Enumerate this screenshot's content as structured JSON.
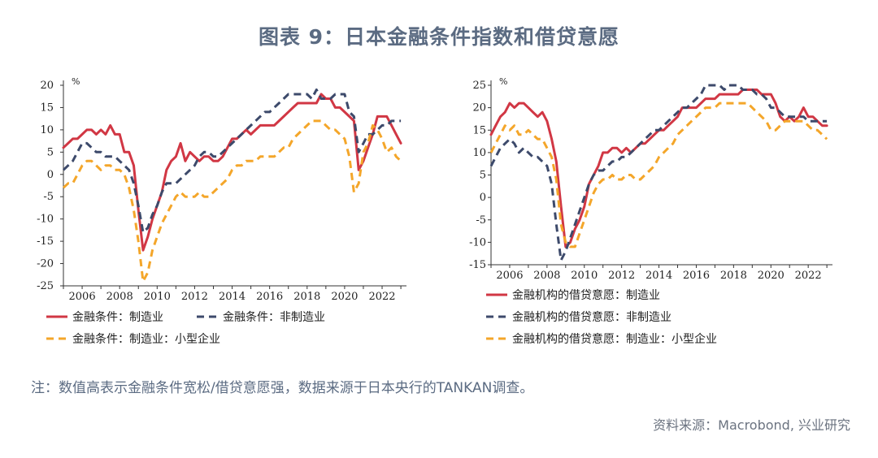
{
  "title": "图表 9：日本金融条件指数和借贷意愿",
  "note": "注：数值高表示金融条件宽松/借贷意愿强，数据来源于日本央行的TANKAN调查。",
  "source": "资料来源：Macrobond, 兴业研究",
  "colors": {
    "red": "#d13744",
    "navy": "#3d4a6b",
    "orange": "#f4a62a"
  },
  "chart_data": [
    {
      "type": "line",
      "unit": "%",
      "xlim": [
        2005,
        2023.3
      ],
      "ylim": [
        -25,
        20
      ],
      "xticks": [
        "2006",
        "2008",
        "2010",
        "2012",
        "2014",
        "2016",
        "2018",
        "2020",
        "2022"
      ],
      "yticks": [
        "20",
        "15",
        "10",
        "5",
        "0",
        "-5",
        "-10",
        "-15",
        "-20",
        "-25"
      ],
      "legend": "bottom",
      "series": [
        {
          "name": "金融条件：制造业",
          "color": "#d13744",
          "dash": "solid",
          "x": [
            2005,
            2005.25,
            2005.5,
            2005.75,
            2006,
            2006.25,
            2006.5,
            2006.75,
            2007,
            2007.25,
            2007.5,
            2007.75,
            2008,
            2008.25,
            2008.5,
            2008.75,
            2009,
            2009.25,
            2009.5,
            2009.75,
            2010,
            2010.25,
            2010.5,
            2010.75,
            2011,
            2011.25,
            2011.5,
            2011.75,
            2012,
            2012.25,
            2012.5,
            2012.75,
            2013,
            2013.25,
            2013.5,
            2013.75,
            2014,
            2014.25,
            2014.5,
            2014.75,
            2015,
            2015.25,
            2015.5,
            2015.75,
            2016,
            2016.25,
            2016.5,
            2016.75,
            2017,
            2017.25,
            2017.5,
            2017.75,
            2018,
            2018.25,
            2018.5,
            2018.75,
            2019,
            2019.25,
            2019.5,
            2019.75,
            2020,
            2020.25,
            2020.5,
            2020.75,
            2021,
            2021.25,
            2021.5,
            2021.75,
            2022,
            2022.25,
            2022.5,
            2022.75,
            2023
          ],
          "y": [
            6,
            7,
            8,
            8,
            9,
            10,
            10,
            9,
            10,
            9,
            11,
            9,
            9,
            5,
            5,
            2,
            -8,
            -17,
            -14,
            -10,
            -7,
            -4,
            1,
            3,
            4,
            7,
            3,
            5,
            4,
            3,
            4,
            4,
            3,
            3,
            4,
            6,
            8,
            8,
            9,
            10,
            9,
            10,
            11,
            11,
            11,
            11,
            12,
            13,
            14,
            15,
            16,
            16,
            16,
            16,
            16,
            18,
            17,
            17,
            15,
            15,
            14,
            13,
            12,
            1,
            3,
            6,
            9,
            13,
            13,
            13,
            11,
            9,
            7
          ]
        },
        {
          "name": "金融条件：非制造业",
          "color": "#3d4a6b",
          "dash": "dashed",
          "x": [
            2005,
            2005.25,
            2005.5,
            2005.75,
            2006,
            2006.25,
            2006.5,
            2006.75,
            2007,
            2007.25,
            2007.5,
            2007.75,
            2008,
            2008.25,
            2008.5,
            2008.75,
            2009,
            2009.25,
            2009.5,
            2009.75,
            2010,
            2010.25,
            2010.5,
            2010.75,
            2011,
            2011.25,
            2011.5,
            2011.75,
            2012,
            2012.25,
            2012.5,
            2012.75,
            2013,
            2013.25,
            2013.5,
            2013.75,
            2014,
            2014.25,
            2014.5,
            2014.75,
            2015,
            2015.25,
            2015.5,
            2015.75,
            2016,
            2016.25,
            2016.5,
            2016.75,
            2017,
            2017.25,
            2017.5,
            2017.75,
            2018,
            2018.25,
            2018.5,
            2018.75,
            2019,
            2019.25,
            2019.5,
            2019.75,
            2020,
            2020.25,
            2020.5,
            2020.75,
            2021,
            2021.25,
            2021.5,
            2021.75,
            2022,
            2022.25,
            2022.5,
            2022.75,
            2023
          ],
          "y": [
            1,
            2,
            3,
            5,
            7,
            7,
            6,
            5,
            5,
            4,
            4,
            4,
            3,
            2,
            1,
            -2,
            -7,
            -13,
            -12,
            -9,
            -7,
            -4,
            -2,
            -2,
            -2,
            -1,
            0,
            1,
            2,
            4,
            5,
            5,
            4,
            4,
            5,
            6,
            7,
            8,
            9,
            10,
            11,
            12,
            13,
            14,
            14,
            15,
            16,
            17,
            18,
            18,
            18,
            18,
            18,
            17,
            19,
            17,
            17,
            17,
            18,
            18,
            18,
            14,
            13,
            5,
            7,
            9,
            9,
            10,
            11,
            11,
            12,
            12,
            12
          ]
        },
        {
          "name": "金融条件：制造业：小型企业",
          "color": "#f4a62a",
          "dash": "dashed",
          "x": [
            2005,
            2005.25,
            2005.5,
            2005.75,
            2006,
            2006.25,
            2006.5,
            2006.75,
            2007,
            2007.25,
            2007.5,
            2007.75,
            2008,
            2008.25,
            2008.5,
            2008.75,
            2009,
            2009.25,
            2009.5,
            2009.75,
            2010,
            2010.25,
            2010.5,
            2010.75,
            2011,
            2011.25,
            2011.5,
            2011.75,
            2012,
            2012.25,
            2012.5,
            2012.75,
            2013,
            2013.25,
            2013.5,
            2013.75,
            2014,
            2014.25,
            2014.5,
            2014.75,
            2015,
            2015.25,
            2015.5,
            2015.75,
            2016,
            2016.25,
            2016.5,
            2016.75,
            2017,
            2017.25,
            2017.5,
            2017.75,
            2018,
            2018.25,
            2018.5,
            2018.75,
            2019,
            2019.25,
            2019.5,
            2019.75,
            2020,
            2020.25,
            2020.5,
            2020.75,
            2021,
            2021.25,
            2021.5,
            2021.75,
            2022,
            2022.25,
            2022.5,
            2022.75,
            2023
          ],
          "y": [
            -3,
            -2,
            -2,
            0,
            2,
            3,
            3,
            2,
            1,
            2,
            2,
            1,
            1,
            0,
            -3,
            -8,
            -15,
            -24,
            -22,
            -17,
            -14,
            -11,
            -9,
            -7,
            -5,
            -4,
            -5,
            -5,
            -5,
            -4,
            -5,
            -5,
            -4,
            -3,
            -2,
            -1,
            1,
            2,
            2,
            3,
            3,
            3,
            4,
            4,
            4,
            4,
            5,
            6,
            6,
            8,
            9,
            10,
            11,
            12,
            12,
            12,
            11,
            10,
            10,
            9,
            8,
            4,
            -4,
            -2,
            5,
            7,
            11,
            10,
            8,
            5,
            6,
            4,
            3
          ]
        }
      ]
    },
    {
      "type": "line",
      "xlim": [
        2005,
        2023.3
      ],
      "ylim": [
        -15,
        25
      ],
      "xticks": [
        "2006",
        "2008",
        "2010",
        "2012",
        "2014",
        "2016",
        "2018",
        "2020",
        "2022"
      ],
      "yticks": [
        "25",
        "20",
        "15",
        "10",
        "5",
        "0",
        "-5",
        "-10",
        "-15"
      ],
      "legend": "bottom",
      "series": [
        {
          "name": "金融机构的借贷意愿：制造业",
          "color": "#d13744",
          "dash": "solid",
          "x": [
            2005,
            2005.25,
            2005.5,
            2005.75,
            2006,
            2006.25,
            2006.5,
            2006.75,
            2007,
            2007.25,
            2007.5,
            2007.75,
            2008,
            2008.25,
            2008.5,
            2008.75,
            2009,
            2009.25,
            2009.5,
            2009.75,
            2010,
            2010.25,
            2010.5,
            2010.75,
            2011,
            2011.25,
            2011.5,
            2011.75,
            2012,
            2012.25,
            2012.5,
            2012.75,
            2013,
            2013.25,
            2013.5,
            2013.75,
            2014,
            2014.25,
            2014.5,
            2014.75,
            2015,
            2015.25,
            2015.5,
            2015.75,
            2016,
            2016.25,
            2016.5,
            2016.75,
            2017,
            2017.25,
            2017.5,
            2017.75,
            2018,
            2018.25,
            2018.5,
            2018.75,
            2019,
            2019.25,
            2019.5,
            2019.75,
            2020,
            2020.25,
            2020.5,
            2020.75,
            2021,
            2021.25,
            2021.5,
            2021.75,
            2022,
            2022.25,
            2022.5,
            2022.75,
            2023
          ],
          "y": [
            14,
            16,
            18,
            19,
            21,
            20,
            21,
            21,
            20,
            19,
            18,
            19,
            17,
            13,
            8,
            -2,
            -11,
            -10,
            -7,
            -5,
            -2,
            3,
            5,
            7,
            10,
            10,
            11,
            11,
            10,
            11,
            10,
            11,
            12,
            12,
            13,
            14,
            15,
            15,
            16,
            17,
            18,
            20,
            20,
            20,
            20,
            21,
            22,
            22,
            22,
            23,
            23,
            23,
            23,
            23,
            24,
            24,
            24,
            24,
            23,
            23,
            23,
            21,
            18,
            17,
            18,
            17,
            18,
            20,
            18,
            18,
            17,
            16,
            16
          ]
        },
        {
          "name": "金融机构的借贷意愿：非制造业",
          "color": "#3d4a6b",
          "dash": "dashed",
          "x": [
            2005,
            2005.25,
            2005.5,
            2005.75,
            2006,
            2006.25,
            2006.5,
            2006.75,
            2007,
            2007.25,
            2007.5,
            2007.75,
            2008,
            2008.25,
            2008.5,
            2008.75,
            2009,
            2009.25,
            2009.5,
            2009.75,
            2010,
            2010.25,
            2010.5,
            2010.75,
            2011,
            2011.25,
            2011.5,
            2011.75,
            2012,
            2012.25,
            2012.5,
            2012.75,
            2013,
            2013.25,
            2013.5,
            2013.75,
            2014,
            2014.25,
            2014.5,
            2014.75,
            2015,
            2015.25,
            2015.5,
            2015.75,
            2016,
            2016.25,
            2016.5,
            2016.75,
            2017,
            2017.25,
            2017.5,
            2017.75,
            2018,
            2018.25,
            2018.5,
            2018.75,
            2019,
            2019.25,
            2019.5,
            2019.75,
            2020,
            2020.25,
            2020.5,
            2020.75,
            2021,
            2021.25,
            2021.5,
            2021.75,
            2022,
            2022.25,
            2022.5,
            2022.75,
            2023
          ],
          "y": [
            7,
            9,
            11,
            12,
            13,
            12,
            10,
            11,
            10,
            9,
            9,
            8,
            7,
            3,
            -6,
            -14,
            -12,
            -9,
            -6,
            -3,
            0,
            3,
            5,
            6,
            6,
            7,
            8,
            8,
            9,
            9,
            10,
            11,
            12,
            13,
            14,
            15,
            15,
            16,
            17,
            18,
            19,
            20,
            20,
            21,
            22,
            23,
            25,
            25,
            25,
            25,
            24,
            25,
            25,
            25,
            24,
            24,
            24,
            23,
            23,
            22,
            20,
            20,
            19,
            18,
            18,
            18,
            18,
            18,
            17,
            17,
            17,
            17,
            17
          ]
        },
        {
          "name": "金融机构的借贷意愿：制造业：小型企业",
          "color": "#f4a62a",
          "dash": "dashed",
          "x": [
            2005,
            2005.25,
            2005.5,
            2005.75,
            2006,
            2006.25,
            2006.5,
            2006.75,
            2007,
            2007.25,
            2007.5,
            2007.75,
            2008,
            2008.25,
            2008.5,
            2008.75,
            2009,
            2009.25,
            2009.5,
            2009.75,
            2010,
            2010.25,
            2010.5,
            2010.75,
            2011,
            2011.25,
            2011.5,
            2011.75,
            2012,
            2012.25,
            2012.5,
            2012.75,
            2013,
            2013.25,
            2013.5,
            2013.75,
            2014,
            2014.25,
            2014.5,
            2014.75,
            2015,
            2015.25,
            2015.5,
            2015.75,
            2016,
            2016.25,
            2016.5,
            2016.75,
            2017,
            2017.25,
            2017.5,
            2017.75,
            2018,
            2018.25,
            2018.5,
            2018.75,
            2019,
            2019.25,
            2019.5,
            2019.75,
            2020,
            2020.25,
            2020.5,
            2020.75,
            2021,
            2021.25,
            2021.5,
            2021.75,
            2022,
            2022.25,
            2022.5,
            2022.75,
            2023
          ],
          "y": [
            10,
            12,
            14,
            16,
            15,
            16,
            14,
            14,
            15,
            14,
            13,
            13,
            11,
            9,
            4,
            -6,
            -10,
            -11,
            -11,
            -8,
            -5,
            -2,
            1,
            3,
            4,
            4,
            5,
            4,
            4,
            5,
            5,
            4,
            4,
            5,
            6,
            7,
            9,
            10,
            11,
            12,
            14,
            15,
            16,
            17,
            18,
            19,
            20,
            20,
            20,
            21,
            21,
            21,
            21,
            21,
            21,
            21,
            20,
            19,
            18,
            17,
            15,
            15,
            16,
            17,
            17,
            17,
            17,
            17,
            16,
            15,
            15,
            14,
            13
          ]
        }
      ]
    }
  ]
}
